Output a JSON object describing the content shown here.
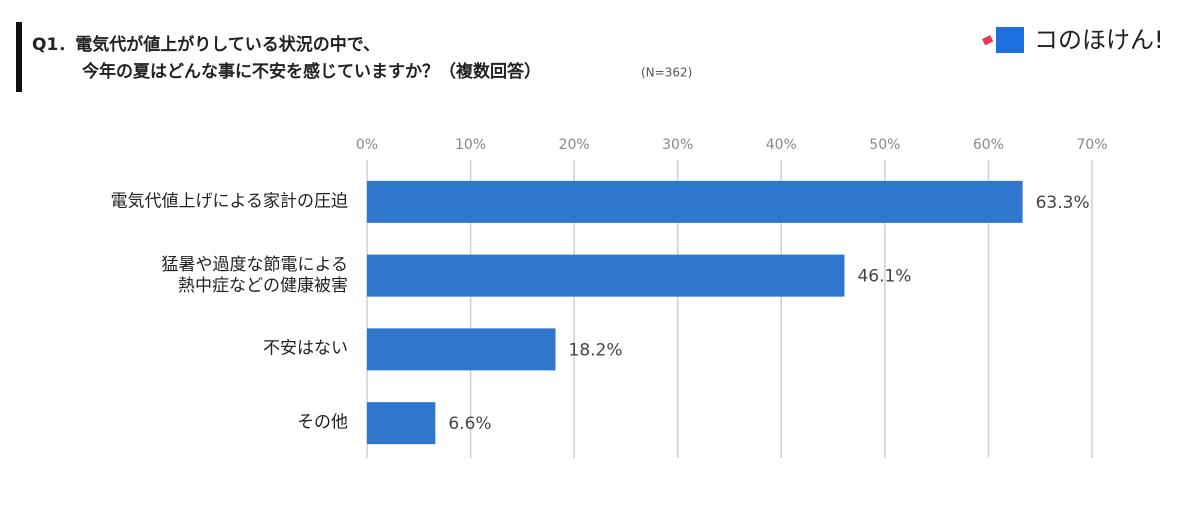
{
  "header": {
    "title_line1": "Q1．電気代が値上がりしている状況の中で、",
    "title_line2": "今年の夏はどんな事に不安を感じていますか？（複数回答）",
    "note": "(N=362)",
    "logo": "コのほけん!"
  },
  "chart_data": {
    "type": "hbar",
    "categories": [
      "電気代値上げによる家計の圧迫",
      "猛暑や過度な節電による\n熱中症などの健康被害",
      "不安はない",
      "その他"
    ],
    "values": [
      63.3,
      46.1,
      18.2,
      6.6
    ],
    "value_labels": [
      "63.3%",
      "46.1%",
      "18.2%",
      "6.6%"
    ],
    "color": "#2e77cd",
    "xlim": [
      0,
      70
    ],
    "xticks": [
      {
        "value": 0,
        "label": "0%"
      },
      {
        "value": 10,
        "label": "10%"
      },
      {
        "value": 20,
        "label": "20%"
      },
      {
        "value": 30,
        "label": "30%"
      },
      {
        "value": 40,
        "label": "40%"
      },
      {
        "value": 50,
        "label": "50%"
      },
      {
        "value": 60,
        "label": "60%"
      },
      {
        "value": 70,
        "label": "70%"
      }
    ],
    "grid": true
  }
}
